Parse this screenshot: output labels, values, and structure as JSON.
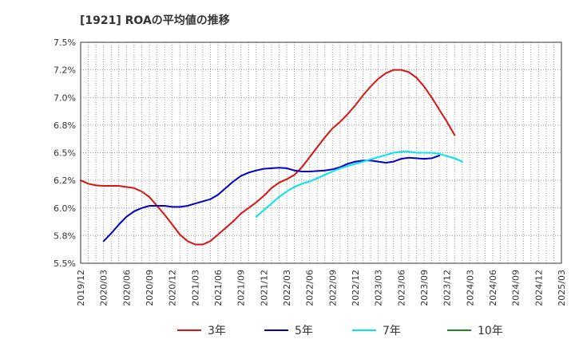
{
  "chart_data": {
    "type": "line",
    "title": "[1921]  ROAの平均値の推移",
    "xlabel": "",
    "ylabel": "",
    "ylim": [
      5.5,
      7.5
    ],
    "y_ticks": [
      {
        "value": 5.5,
        "label": "5.5%"
      },
      {
        "value": 5.75,
        "label": "5.8%"
      },
      {
        "value": 6.0,
        "label": "6.0%"
      },
      {
        "value": 6.25,
        "label": "6.2%"
      },
      {
        "value": 6.5,
        "label": "6.5%"
      },
      {
        "value": 6.75,
        "label": "6.8%"
      },
      {
        "value": 7.0,
        "label": "7.0%"
      },
      {
        "value": 7.25,
        "label": "7.2%"
      },
      {
        "value": 7.5,
        "label": "7.5%"
      }
    ],
    "x_ticks": [
      "2019/12",
      "2020/03",
      "2020/06",
      "2020/09",
      "2020/12",
      "2021/03",
      "2021/06",
      "2021/09",
      "2021/12",
      "2022/03",
      "2022/06",
      "2022/09",
      "2022/12",
      "2023/03",
      "2023/06",
      "2023/09",
      "2023/12",
      "2024/03",
      "2024/06",
      "2024/09",
      "2024/12",
      "2025/03"
    ],
    "grid": true,
    "legend_position": "bottom",
    "series": [
      {
        "name": "3年",
        "color": "#dd1111",
        "start": 0,
        "values": [
          6.25,
          6.22,
          6.205,
          6.2,
          6.2,
          6.2,
          6.19,
          6.18,
          6.15,
          6.1,
          6.02,
          5.94,
          5.85,
          5.76,
          5.7,
          5.67,
          5.67,
          5.7,
          5.76,
          5.82,
          5.88,
          5.95,
          6.0,
          6.05,
          6.11,
          6.18,
          6.23,
          6.26,
          6.3,
          6.37,
          6.46,
          6.55,
          6.64,
          6.72,
          6.78,
          6.85,
          6.93,
          7.02,
          7.1,
          7.17,
          7.22,
          7.25,
          7.25,
          7.23,
          7.18,
          7.1,
          7.0,
          6.89,
          6.78,
          6.66
        ]
      },
      {
        "name": "5年",
        "color": "#0000cc",
        "start": 3,
        "values": [
          5.7,
          5.77,
          5.85,
          5.92,
          5.97,
          6.0,
          6.02,
          6.02,
          6.02,
          6.01,
          6.01,
          6.02,
          6.04,
          6.06,
          6.08,
          6.12,
          6.18,
          6.24,
          6.29,
          6.32,
          6.34,
          6.355,
          6.36,
          6.365,
          6.36,
          6.34,
          6.33,
          6.33,
          6.335,
          6.34,
          6.35,
          6.37,
          6.4,
          6.42,
          6.43,
          6.43,
          6.42,
          6.41,
          6.42,
          6.445,
          6.455,
          6.45,
          6.445,
          6.45,
          6.475
        ]
      },
      {
        "name": "7年",
        "color": "#00e5ee",
        "start": 23,
        "values": [
          5.92,
          5.98,
          6.04,
          6.1,
          6.15,
          6.19,
          6.22,
          6.24,
          6.27,
          6.3,
          6.33,
          6.36,
          6.38,
          6.4,
          6.42,
          6.44,
          6.46,
          6.48,
          6.5,
          6.51,
          6.51,
          6.5,
          6.5,
          6.5,
          6.49,
          6.47,
          6.45,
          6.42
        ]
      },
      {
        "name": "10年",
        "color": "#1a8a1a",
        "start": 0,
        "values": []
      }
    ]
  }
}
